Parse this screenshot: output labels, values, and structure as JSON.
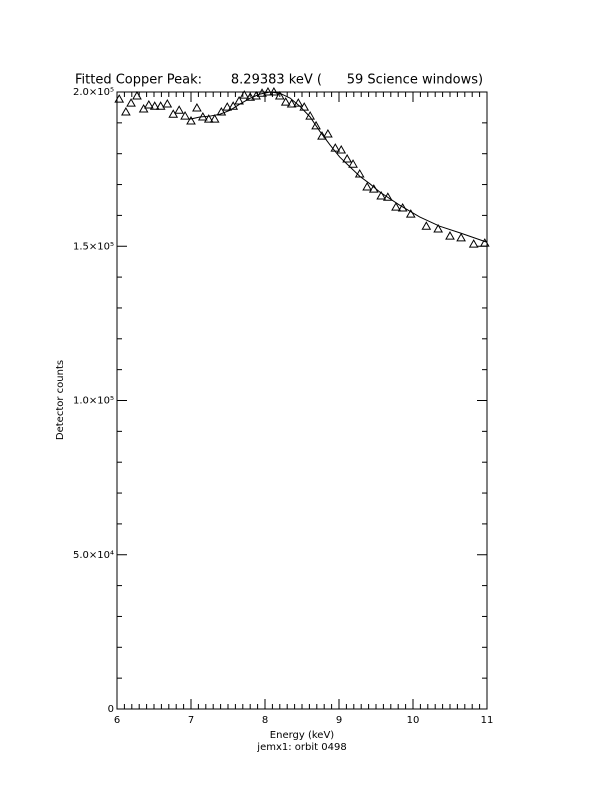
{
  "chart_data": {
    "type": "scatter",
    "title": "Fitted Copper Peak:       8.29383 keV (      59 Science windows)",
    "x_label": "Energy (keV)",
    "subtitle": "jemx1: orbit 0498",
    "y_label": "Detector counts",
    "xlim": [
      6,
      11
    ],
    "ylim": [
      0,
      200000
    ],
    "xticks": [
      6,
      7,
      8,
      9,
      10,
      11
    ],
    "yticks": [
      0,
      {
        "value": 50000,
        "label": "5.0×10⁴"
      },
      {
        "value": 100000,
        "label": "1.0×10⁵"
      },
      {
        "value": 150000,
        "label": "1.5×10⁵"
      },
      {
        "value": 200000,
        "label": "2.0×10⁵"
      }
    ],
    "xminorticks": [
      6.1,
      6.2,
      6.3,
      6.4,
      6.5,
      6.6,
      6.7,
      6.8,
      6.9,
      7.1,
      7.2,
      7.3,
      7.4,
      7.5,
      7.6,
      7.7,
      7.8,
      7.9,
      8.1,
      8.2,
      8.3,
      8.4,
      8.5,
      8.6,
      8.7,
      8.8,
      8.9,
      9.1,
      9.2,
      9.3,
      9.4,
      9.5,
      9.6,
      9.7,
      9.8,
      9.9,
      10.1,
      10.2,
      10.3,
      10.4,
      10.5,
      10.6,
      10.7,
      10.8,
      10.9
    ],
    "yminorticks": [
      10000,
      20000,
      30000,
      40000,
      60000,
      70000,
      80000,
      90000,
      110000,
      120000,
      130000,
      140000,
      160000,
      170000,
      180000,
      190000
    ],
    "series": [
      {
        "marker": "triangle",
        "color": "#000000",
        "x": [
          6.03,
          6.12,
          6.19,
          6.27,
          6.36,
          6.43,
          6.51,
          6.59,
          6.68,
          6.76,
          6.84,
          6.92,
          7.0,
          7.08,
          7.16,
          7.24,
          7.32,
          7.41,
          7.49,
          7.57,
          7.65,
          7.72,
          7.8,
          7.88,
          7.96,
          8.04,
          8.12,
          8.2,
          8.28,
          8.36,
          8.45,
          8.53,
          8.61,
          8.69,
          8.77,
          8.85,
          8.95,
          9.03,
          9.11,
          9.19,
          9.28,
          9.38,
          9.47,
          9.57,
          9.66,
          9.77,
          9.86,
          9.97,
          10.18,
          10.34,
          10.5,
          10.65,
          10.82,
          10.97
        ],
        "values": [
          197700,
          193500,
          196400,
          198700,
          194500,
          195800,
          195400,
          195400,
          196100,
          192800,
          194100,
          192200,
          190600,
          194800,
          191900,
          191200,
          191200,
          193500,
          195100,
          195400,
          197100,
          199000,
          198300,
          198700,
          199600,
          200000,
          200000,
          198700,
          196700,
          196100,
          196400,
          195100,
          192200,
          189000,
          185700,
          186400,
          181800,
          181200,
          178300,
          176600,
          173400,
          169200,
          168500,
          166300,
          165900,
          162700,
          162400,
          160400,
          156500,
          155600,
          153300,
          152700,
          150700,
          151000
        ]
      },
      {
        "style": "line",
        "color": "#000000",
        "x": [
          6.99,
          7.12,
          7.26,
          7.39,
          7.53,
          7.66,
          7.8,
          7.93,
          8.07,
          8.2,
          8.34,
          8.47,
          8.61,
          8.74,
          8.88,
          9.01,
          9.15,
          9.28,
          9.42,
          9.55,
          9.82,
          10.09,
          10.36,
          10.64,
          11.0
        ],
        "values": [
          191200,
          191900,
          192200,
          192800,
          194100,
          196100,
          198000,
          199300,
          200000,
          199600,
          198000,
          195400,
          191900,
          187300,
          182800,
          178900,
          175700,
          172700,
          170200,
          167600,
          163300,
          159500,
          156500,
          154300,
          151300
        ]
      }
    ]
  }
}
